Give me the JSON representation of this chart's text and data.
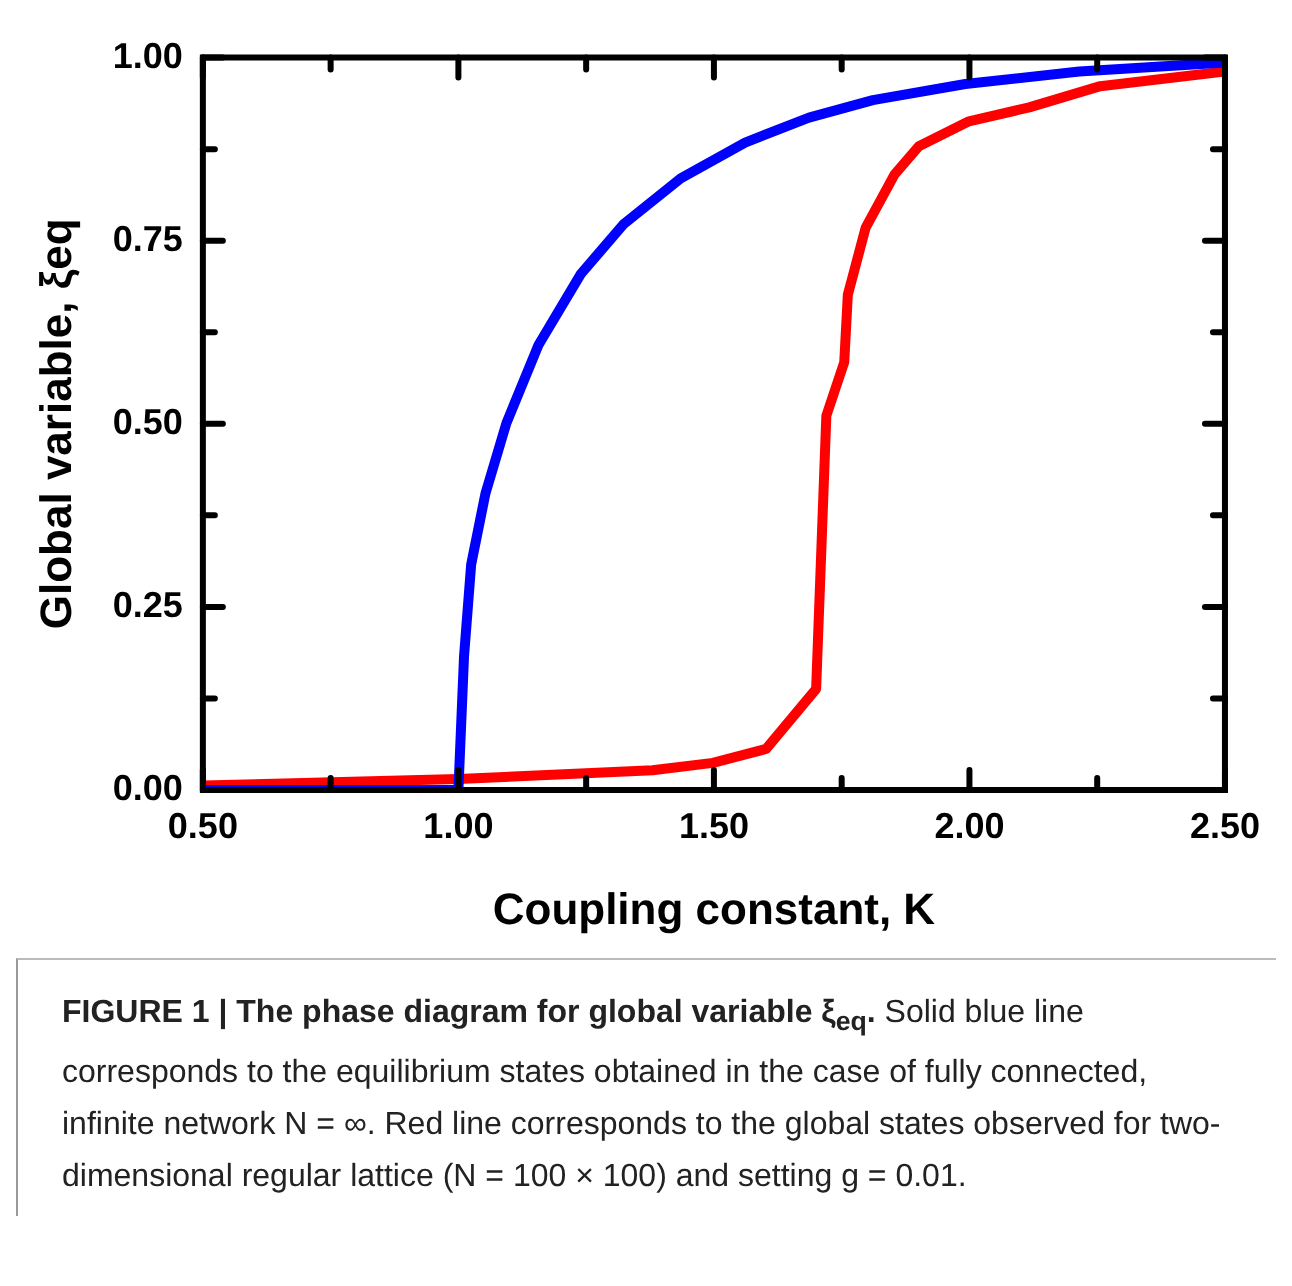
{
  "chart_data": {
    "type": "line",
    "xlabel": "Coupling constant, K",
    "ylabel": "Global variable, ξeq",
    "xlim": [
      0.5,
      2.5
    ],
    "ylim": [
      0,
      1
    ],
    "xticks": [
      {
        "value": 0.5,
        "label": "0.50"
      },
      {
        "value": 0.75,
        "label": null
      },
      {
        "value": 1,
        "label": "1.00"
      },
      {
        "value": 1.25,
        "label": null
      },
      {
        "value": 1.5,
        "label": "1.50"
      },
      {
        "value": 1.75,
        "label": null
      },
      {
        "value": 2,
        "label": "2.00"
      },
      {
        "value": 2.25,
        "label": null
      },
      {
        "value": 2.5,
        "label": "2.50"
      }
    ],
    "yticks": [
      {
        "value": 0,
        "label": "0.00"
      },
      {
        "value": 0.125,
        "label": null
      },
      {
        "value": 0.25,
        "label": "0.25"
      },
      {
        "value": 0.375,
        "label": null
      },
      {
        "value": 0.5,
        "label": "0.50"
      },
      {
        "value": 0.625,
        "label": null
      },
      {
        "value": 0.75,
        "label": "0.75"
      },
      {
        "value": 0.875,
        "label": null
      },
      {
        "value": 1,
        "label": "1.00"
      }
    ],
    "grid": false,
    "legend": false,
    "marker": "none",
    "line_style": "solid",
    "series": [
      {
        "color": "#0000ff",
        "x": [
          0.5,
          1.0,
          1.004,
          1.011,
          1.025,
          1.053,
          1.094,
          1.157,
          1.24,
          1.324,
          1.435,
          1.561,
          1.686,
          1.811,
          1.992,
          2.215,
          2.493
        ],
        "values": [
          0,
          0,
          0.066,
          0.182,
          0.308,
          0.405,
          0.501,
          0.608,
          0.705,
          0.773,
          0.835,
          0.884,
          0.918,
          0.942,
          0.964,
          0.981,
          0.993
        ]
      },
      {
        "color": "#ff0000",
        "x": [
          0.5,
          1.0,
          1.38,
          1.498,
          1.602,
          1.7,
          1.72,
          1.755,
          1.762,
          1.797,
          1.853,
          1.901,
          1.999,
          2.117,
          2.256,
          2.5
        ],
        "values": [
          0.006,
          0.015,
          0.027,
          0.037,
          0.056,
          0.138,
          0.511,
          0.584,
          0.676,
          0.768,
          0.84,
          0.879,
          0.913,
          0.932,
          0.961,
          0.981
        ]
      }
    ],
    "annotations": [
      "FIGURE 1 | The phase diagram for global variable ξ$_{eq}$.",
      "Solid blue line corresponds to the equilibrium states obtained in the case of fully connected, infinite network N = ∞. Red line corresponds to the global states observed for two-dimensional regular lattice (N = 100 × 100) and setting g = 0.01."
    ]
  }
}
